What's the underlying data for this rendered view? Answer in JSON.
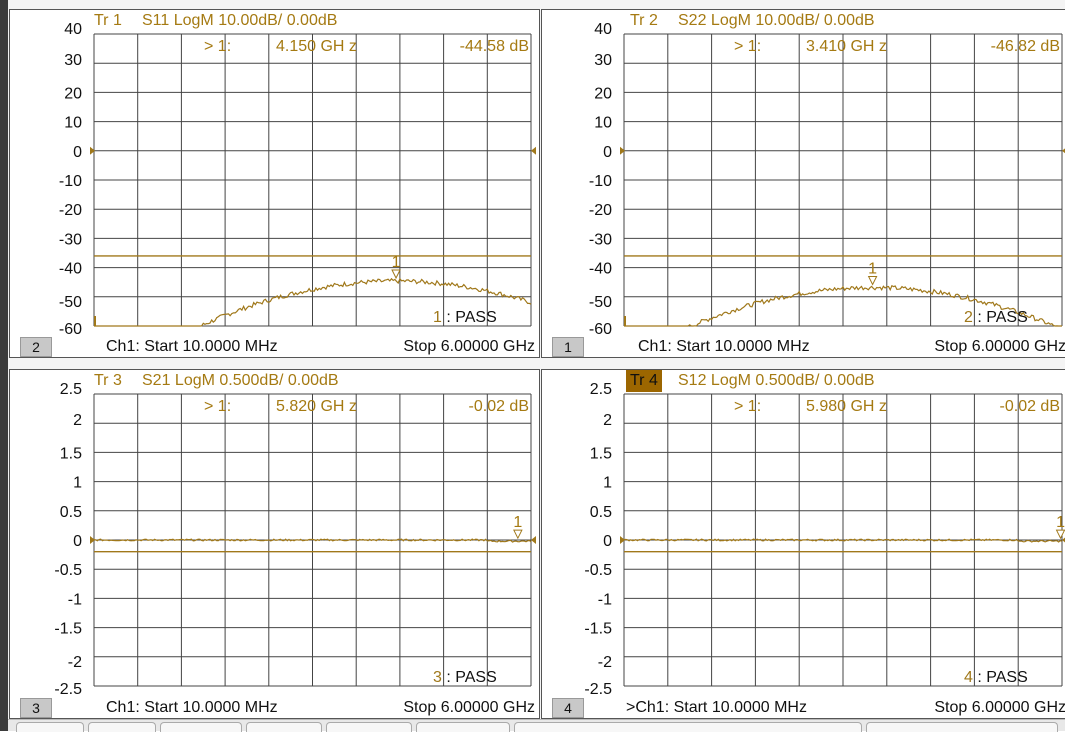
{
  "colors": {
    "trace": "#a0781a",
    "grid": "#444444",
    "active_trace_bg": "#9c6600",
    "marker": "#a57a12"
  },
  "panels": [
    {
      "trace_label": "Tr 1",
      "trace_desc": "S11 LogM 10.00dB/  0.00dB",
      "active_trace": false,
      "marker": {
        "label": "> 1:",
        "freq": "4.150  GH z",
        "value": "-44.58 dB"
      },
      "channel_badge": "2",
      "footer_start": "Ch1:  Start  10.0000 MHz",
      "footer_stop": "Stop  6.00000 GHz",
      "pass_text": "1 : PASS",
      "y_ticks": [
        "40",
        "30",
        "20",
        "10",
        "0",
        "-10",
        "-20",
        "-30",
        "-40",
        "-50",
        "-60"
      ],
      "ref_level": 0,
      "limit_line": -36,
      "marker_position": {
        "freq_ghz": 4.15,
        "value_db": -44.58,
        "label": "1"
      },
      "trace_shape": "hump",
      "trace_peak_db": -44.6
    },
    {
      "trace_label": "Tr 2",
      "trace_desc": "S22 LogM 10.00dB/  0.00dB",
      "active_trace": false,
      "marker": {
        "label": "> 1:",
        "freq": "3.410  GH z",
        "value": "-46.82 dB"
      },
      "channel_badge": "1",
      "footer_start": "Ch1:  Start  10.0000 MHz",
      "footer_stop": "Stop  6.00000 GHz",
      "pass_text": "2 : PASS",
      "y_ticks": [
        "40",
        "30",
        "20",
        "10",
        "0",
        "-10",
        "-20",
        "-30",
        "-40",
        "-50",
        "-60"
      ],
      "ref_level": 0,
      "limit_line": -36,
      "marker_position": {
        "freq_ghz": 3.41,
        "value_db": -46.82,
        "label": "1"
      },
      "trace_shape": "hump",
      "trace_peak_db": -46.8
    },
    {
      "trace_label": "Tr 3",
      "trace_desc": "S21 LogM 0.500dB/  0.00dB",
      "active_trace": false,
      "marker": {
        "label": "> 1:",
        "freq": "5.820  GH z",
        "value": "-0.02 dB"
      },
      "channel_badge": "3",
      "footer_start": "Ch1:  Start  10.0000 MHz",
      "footer_stop": "Stop  6.00000 GHz",
      "pass_text": "3 : PASS",
      "y_ticks": [
        "2.5",
        "2",
        "1.5",
        "1",
        "0.5",
        "0",
        "-0.5",
        "-1",
        "-1.5",
        "-2",
        "-2.5"
      ],
      "ref_level": 0,
      "limit_line": -0.2,
      "marker_position": {
        "freq_ghz": 5.82,
        "value_db": -0.02,
        "label": "1"
      },
      "trace_shape": "flat",
      "trace_peak_db": -0.02
    },
    {
      "trace_label": "Tr 4",
      "trace_desc": "S12 LogM 0.500dB/  0.00dB",
      "active_trace": true,
      "marker": {
        "label": "> 1:",
        "freq": "5.980  GH z",
        "value": "-0.02 dB"
      },
      "channel_badge": "4",
      "footer_start": ">Ch1:  Start  10.0000 MHz",
      "footer_stop": "Stop  6.00000 GHz",
      "pass_text": "4 : PASS",
      "y_ticks": [
        "2.5",
        "2",
        "1.5",
        "1",
        "0.5",
        "0",
        "-0.5",
        "-1",
        "-1.5",
        "-2",
        "-2.5"
      ],
      "ref_level": 0,
      "limit_line": -0.2,
      "marker_position": {
        "freq_ghz": 5.98,
        "value_db": -0.02,
        "label": "1"
      },
      "trace_shape": "flat",
      "trace_peak_db": -0.02
    }
  ]
}
